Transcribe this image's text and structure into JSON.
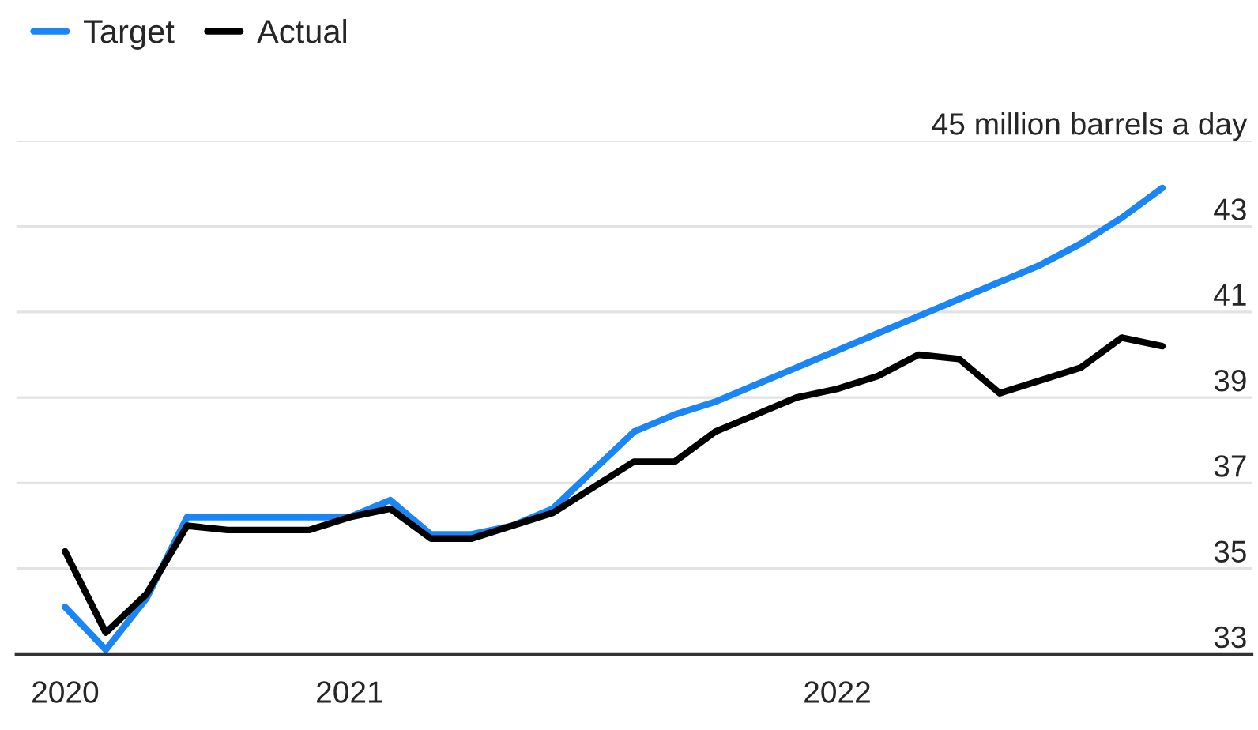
{
  "chart_data": {
    "type": "line",
    "categories": [
      "2020",
      null,
      null,
      null,
      null,
      null,
      null,
      "2021",
      null,
      null,
      null,
      null,
      null,
      null,
      null,
      null,
      null,
      null,
      null,
      "2022",
      null,
      null,
      null,
      null,
      null,
      null,
      null,
      null
    ],
    "series": [
      {
        "name": "Target",
        "color": "#1a86f5",
        "values": [
          34.1,
          33.1,
          34.3,
          36.2,
          36.2,
          36.2,
          36.2,
          36.2,
          36.6,
          35.8,
          35.8,
          36.0,
          36.4,
          37.3,
          38.2,
          38.6,
          38.9,
          39.3,
          39.7,
          40.1,
          40.5,
          40.9,
          41.3,
          41.7,
          42.1,
          42.6,
          43.2,
          43.9
        ]
      },
      {
        "name": "Actual",
        "color": "#000000",
        "values": [
          35.4,
          33.5,
          34.4,
          36.0,
          35.9,
          35.9,
          35.9,
          36.2,
          36.4,
          35.7,
          35.7,
          36.0,
          36.3,
          36.9,
          37.5,
          37.5,
          38.2,
          38.6,
          39.0,
          39.2,
          39.5,
          40.0,
          39.9,
          39.1,
          39.4,
          39.7,
          40.4,
          40.2
        ]
      }
    ],
    "ylim": [
      33,
      45
    ],
    "yticks": [
      33,
      35,
      37,
      39,
      41,
      43,
      {
        "value": 45,
        "label": "45 million barrels a day"
      }
    ],
    "grid": "y",
    "legend": "top left",
    "line_style": "solid",
    "marker": "none"
  }
}
